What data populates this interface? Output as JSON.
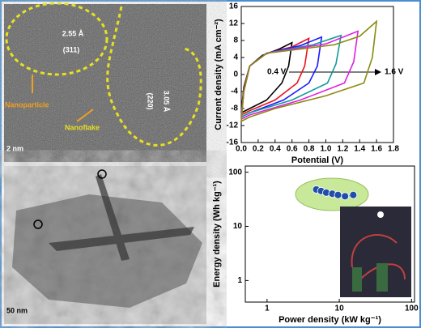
{
  "chart_data": [
    {
      "type": "line",
      "x_label": "Potential (V)",
      "y_label": "Current density (mA cm⁻²)",
      "xlim": [
        0,
        1.8
      ],
      "ylim": [
        -16,
        16
      ],
      "xticks": [
        {
          "value": 0,
          "label": "0.0"
        },
        0.2,
        0.4,
        0.6,
        0.8,
        {
          "value": 1,
          "label": "1.0"
        },
        1.2,
        1.4,
        1.6,
        1.8
      ],
      "yticks": [
        -16,
        -12,
        -8,
        -4,
        0,
        4,
        8,
        12,
        16
      ],
      "annotations": [
        "0.4 V",
        "1.6 V"
      ],
      "series": [
        {
          "color": "#000000",
          "x": [
            0,
            0.03,
            0.1,
            0.25,
            0.45,
            0.6,
            0.56,
            0.48,
            0.3,
            0.1,
            0
          ],
          "values": [
            -9,
            -3,
            2,
            4.5,
            6,
            7.5,
            2,
            -2,
            -6,
            -8,
            -9
          ]
        },
        {
          "color": "#e8141c",
          "x": [
            0,
            0.03,
            0.1,
            0.3,
            0.6,
            0.8,
            0.75,
            0.66,
            0.4,
            0.1,
            0
          ],
          "values": [
            -9.5,
            -3.5,
            2,
            5,
            6.5,
            8.5,
            2,
            -2,
            -6,
            -8.5,
            -9.5
          ]
        },
        {
          "color": "#1a1aff",
          "x": [
            0,
            0.03,
            0.1,
            0.3,
            0.7,
            0.95,
            0.9,
            0.8,
            0.5,
            0.1,
            0
          ],
          "values": [
            -10,
            -4,
            2,
            5,
            6.8,
            8.8,
            2,
            -2,
            -6,
            -9,
            -10
          ]
        },
        {
          "color": "#119a9a",
          "x": [
            0,
            0.03,
            0.1,
            0.3,
            0.85,
            1.18,
            1.12,
            1.02,
            0.6,
            0.1,
            0
          ],
          "values": [
            -10,
            -4,
            2,
            5,
            7,
            9.2,
            2.5,
            -2,
            -6,
            -9,
            -10
          ]
        },
        {
          "color": "#e020e0",
          "x": [
            0,
            0.03,
            0.1,
            0.3,
            1,
            1.38,
            1.33,
            1.22,
            0.7,
            0.1,
            0
          ],
          "values": [
            -10.5,
            -4,
            2,
            5,
            7.2,
            10.2,
            3,
            -2,
            -6,
            -9.5,
            -10.5
          ]
        },
        {
          "color": "#8a8a10",
          "x": [
            0,
            0.03,
            0.1,
            0.3,
            1.1,
            1.4,
            1.6,
            1.55,
            1.45,
            1,
            0.4,
            0.1,
            0
          ],
          "values": [
            -11,
            -4,
            2,
            5,
            7,
            9,
            12.5,
            4,
            -2,
            -5,
            -8,
            -10,
            -11
          ]
        }
      ]
    },
    {
      "type": "scatter",
      "x_label": "Power density (kW kg⁻¹)",
      "y_label": "Energy density (Wh kg⁻¹)",
      "log": true,
      "xlim": [
        0.5,
        110
      ],
      "ylim": [
        0.4,
        130
      ],
      "xticks": [
        1,
        10,
        100
      ],
      "yticks": [
        1,
        10,
        100
      ],
      "series": [
        {
          "color": "#1f4fa8",
          "x": [
            4.8,
            5.6,
            6.6,
            8,
            9.6,
            12,
            15.6
          ],
          "values": [
            48,
            45,
            42,
            40,
            38,
            36,
            38
          ]
        }
      ]
    }
  ],
  "images": {
    "d_spacing_1": "2.55 Å",
    "plane_1": "(311)",
    "d_spacing_2": "3.05 Å",
    "plane_2": "(220)",
    "label_1": "Nanoparticle",
    "label_2": "Nanoflake",
    "scale_1": "2 nm",
    "scale_2": "50 nm"
  }
}
